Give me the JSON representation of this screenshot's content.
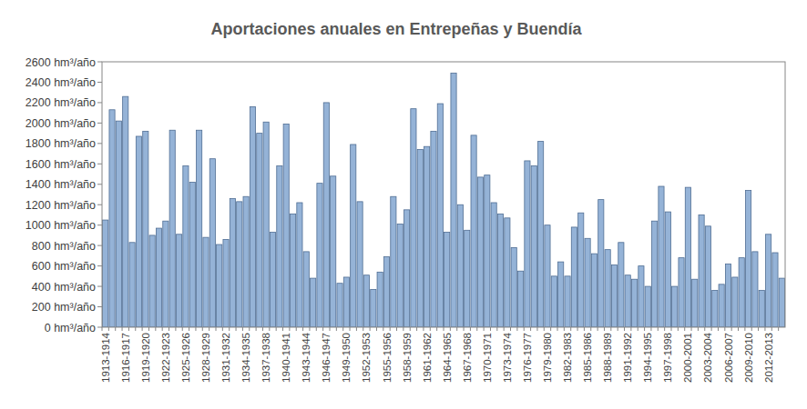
{
  "chart_data": {
    "type": "bar",
    "title": "Aportaciones anuales en Entrepeñas y Buendía",
    "categories": [
      "1913-1914",
      null,
      null,
      "1916-1917",
      null,
      null,
      "1919-1920",
      null,
      null,
      "1922-1923",
      null,
      null,
      "1925-1926",
      null,
      null,
      "1928-1929",
      null,
      null,
      "1931-1932",
      null,
      null,
      "1934-1935",
      null,
      null,
      "1937-1938",
      null,
      null,
      "1940-1941",
      null,
      null,
      "1943-1944",
      null,
      null,
      "1946-1947",
      null,
      null,
      "1949-1950",
      null,
      null,
      "1952-1953",
      null,
      null,
      "1955-1956",
      null,
      null,
      "1958-1959",
      null,
      null,
      "1961-1962",
      null,
      null,
      "1964-1965",
      null,
      null,
      "1967-1968",
      null,
      null,
      "1970-1971",
      null,
      null,
      "1973-1974",
      null,
      null,
      "1976-1977",
      null,
      null,
      "1979-1980",
      null,
      null,
      "1982-1983",
      null,
      null,
      "1985-1986",
      null,
      null,
      "1988-1989",
      null,
      null,
      "1991-1992",
      null,
      null,
      "1994-1995",
      null,
      null,
      "1997-1998",
      null,
      null,
      "2000-2001",
      null,
      null,
      "2003-2004",
      null,
      null,
      "2006-2007",
      null,
      null,
      "2009-2010",
      null,
      null,
      "2012-2013",
      null,
      null
    ],
    "values": [
      1050,
      2130,
      2020,
      2260,
      830,
      1870,
      1920,
      900,
      970,
      1040,
      1930,
      910,
      1580,
      1420,
      1930,
      880,
      1650,
      810,
      860,
      1260,
      1230,
      1280,
      2160,
      1900,
      2010,
      930,
      1580,
      1990,
      1110,
      1220,
      740,
      480,
      1410,
      2200,
      1480,
      430,
      490,
      1790,
      1230,
      510,
      370,
      540,
      690,
      1280,
      1010,
      1150,
      2140,
      1740,
      1770,
      1920,
      2190,
      930,
      2490,
      1200,
      950,
      1880,
      1470,
      1490,
      1220,
      1110,
      1070,
      780,
      550,
      1630,
      1580,
      1820,
      1000,
      500,
      640,
      500,
      980,
      1120,
      870,
      720,
      1250,
      760,
      610,
      830,
      510,
      470,
      600,
      400,
      1040,
      1380,
      1130,
      400,
      680,
      1370,
      470,
      1100,
      990,
      360,
      420,
      620,
      490,
      680,
      1340,
      740,
      360,
      910,
      730,
      480
    ],
    "color": "#95b3d7",
    "ylim": [
      0,
      2600
    ],
    "yticks": [
      {
        "value": 0,
        "label": "0 hm³/año"
      },
      {
        "value": 200,
        "label": "200 hm³/año"
      },
      {
        "value": 400,
        "label": "400 hm³/año"
      },
      {
        "value": 600,
        "label": "600 hm³/año"
      },
      {
        "value": 800,
        "label": "800 hm³/año"
      },
      {
        "value": 1000,
        "label": "1000 hm³/año"
      },
      {
        "value": 1200,
        "label": "1200 hm³/año"
      },
      {
        "value": 1400,
        "label": "1400 hm³/año"
      },
      {
        "value": 1600,
        "label": "1600 hm³/año"
      },
      {
        "value": 1800,
        "label": "1800 hm³/año"
      },
      {
        "value": 2000,
        "label": "2000 hm³/año"
      },
      {
        "value": 2200,
        "label": "2200 hm³/año"
      },
      {
        "value": 2400,
        "label": "2400 hm³/año"
      },
      {
        "value": 2600,
        "label": "2600 hm³/año"
      }
    ],
    "grid": false
  }
}
